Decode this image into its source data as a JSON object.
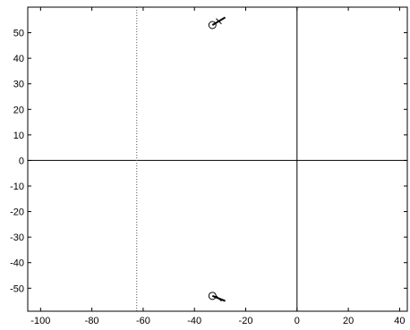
{
  "chart_data": {
    "type": "scatter",
    "title": "",
    "xlabel": "",
    "ylabel": "",
    "xlim": [
      -105,
      43
    ],
    "ylim": [
      -59,
      60
    ],
    "xticks": [
      -100,
      -80,
      -60,
      -40,
      -20,
      0,
      20,
      40
    ],
    "yticks": [
      50,
      40,
      30,
      20,
      10,
      0,
      -10,
      -20,
      -30,
      -40,
      -50
    ],
    "xtick_labels": [
      "-100",
      "-80",
      "-60",
      "-40",
      "-20",
      "0",
      "20",
      "40"
    ],
    "ytick_labels": [
      "50",
      "40",
      "30",
      "20",
      "10",
      "0",
      "-10",
      "-20",
      "-30",
      "-40",
      "-50"
    ],
    "grid": false,
    "axis_lines": [
      {
        "orientation": "horizontal",
        "value": 0,
        "style": "solid"
      },
      {
        "orientation": "vertical",
        "value": 0,
        "style": "solid"
      },
      {
        "orientation": "vertical",
        "value": -62.5,
        "style": "dotted"
      }
    ],
    "series": [
      {
        "marker": "circle",
        "points": [
          {
            "x": -33,
            "y": 53
          },
          {
            "x": -33,
            "y": -53
          }
        ]
      }
    ],
    "branches": [
      {
        "from": {
          "x": -33,
          "y": 53
        },
        "to": {
          "x": -28,
          "y": 56
        }
      },
      {
        "from": {
          "x": -33,
          "y": -53
        },
        "to": {
          "x": -28,
          "y": -55
        }
      }
    ]
  }
}
